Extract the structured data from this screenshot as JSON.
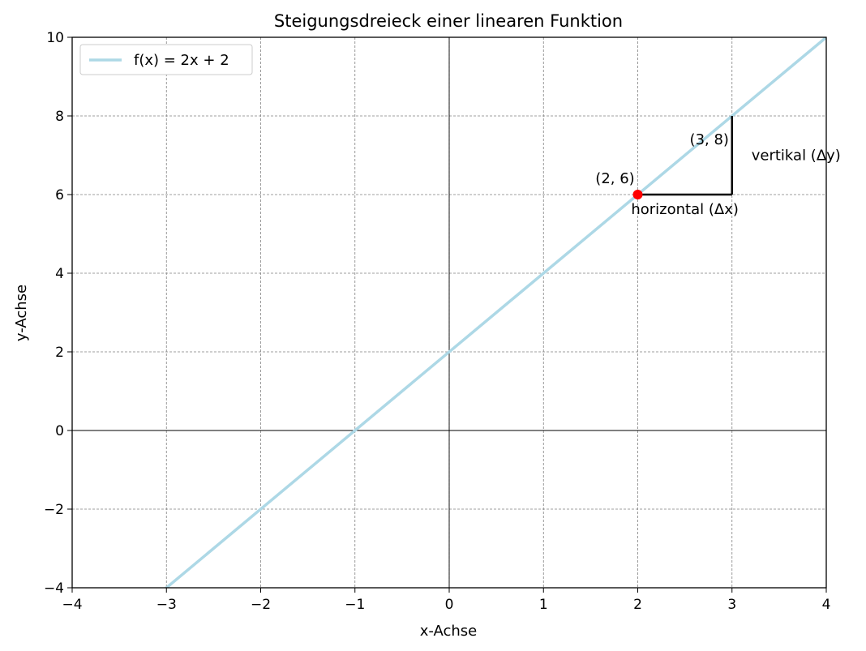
{
  "chart_data": {
    "type": "line",
    "title": "Steigungsdreieck einer linearen Funktion",
    "xlabel": "x-Achse",
    "ylabel": "y-Achse",
    "xlim": [
      -4,
      4
    ],
    "ylim": [
      -4,
      10
    ],
    "x_ticks": [
      -4,
      -3,
      -2,
      -1,
      0,
      1,
      2,
      3,
      4
    ],
    "y_ticks": [
      -4,
      -2,
      0,
      2,
      4,
      6,
      8,
      10
    ],
    "x_tick_labels": [
      "−4",
      "−3",
      "−2",
      "−1",
      "0",
      "1",
      "2",
      "3",
      "4"
    ],
    "y_tick_labels": [
      "−4",
      "−2",
      "0",
      "2",
      "4",
      "6",
      "8",
      "10"
    ],
    "grid": true,
    "legend_position": "upper-left",
    "series": [
      {
        "name": "f(x) = 2x + 2",
        "color": "#add8e6",
        "x": [
          -4,
          4
        ],
        "y": [
          -6,
          10
        ]
      }
    ],
    "points": [
      {
        "x": 2,
        "y": 6,
        "color": "#ff0000"
      }
    ],
    "triangle": {
      "horizontal": {
        "from": [
          2,
          6
        ],
        "to": [
          3,
          6
        ]
      },
      "vertical": {
        "from": [
          3,
          6
        ],
        "to": [
          3,
          8
        ]
      },
      "color": "#000000"
    },
    "annotations": [
      {
        "id": "point-a",
        "text": "(2, 6)",
        "x": 2,
        "y": 6
      },
      {
        "id": "point-b",
        "text": "(3, 8)",
        "x": 3,
        "y": 8
      },
      {
        "id": "horizontal",
        "text": "horizontal (Δx)",
        "x": 2.5,
        "y": 6
      },
      {
        "id": "vertical",
        "text": "vertikal (Δy)",
        "x": 3,
        "y": 7
      }
    ]
  }
}
